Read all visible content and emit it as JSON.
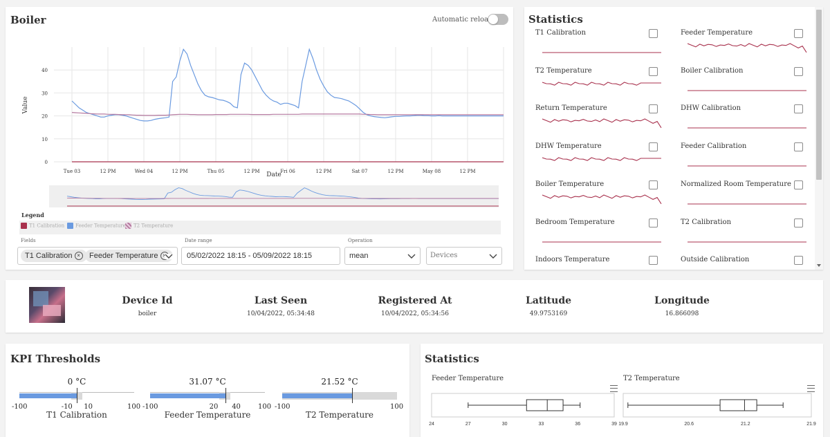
{
  "boiler_card": {
    "title": "Boiler",
    "auto_reload_label": "Automatic reload:",
    "auto_reload_on": false,
    "legend_title": "Legend",
    "fields_label": "Fields",
    "date_range_label": "Date range",
    "operation_label": "Operation",
    "selected_fields": [
      "T1 Calibration",
      "Feeder Temperature"
    ],
    "date_range_value": "05/02/2022 18:15 - 05/09/2022 18:15",
    "operation_value": "mean",
    "devices_placeholder": "Devices"
  },
  "chart_data": {
    "type": "line",
    "ylabel": "Value",
    "xlabel": "Date",
    "ylim": [
      0,
      50
    ],
    "yticks": [
      0,
      10,
      20,
      30,
      40
    ],
    "xticks": [
      "Tue 03",
      "12 PM",
      "Wed 04",
      "12 PM",
      "Thu 05",
      "12 PM",
      "Fri 06",
      "12 PM",
      "Sat 07",
      "12 PM",
      "May 08",
      "12 PM"
    ],
    "x": [
      0,
      0.05,
      0.1,
      0.15,
      0.2,
      0.25,
      0.3,
      0.35,
      0.4,
      0.45,
      0.5,
      0.55,
      0.6,
      0.65,
      0.7,
      0.75,
      0.8,
      0.85,
      0.9,
      0.95,
      1.0,
      1.05,
      1.1,
      1.15,
      1.2,
      1.25,
      1.3,
      1.35,
      1.4,
      1.45,
      1.5,
      1.55,
      1.6,
      1.65,
      1.7,
      1.75,
      1.8,
      1.85,
      1.9,
      1.95,
      2.0,
      2.05,
      2.1,
      2.15,
      2.2,
      2.25,
      2.3,
      2.35,
      2.4,
      2.45,
      2.5,
      2.55,
      2.6,
      2.65,
      2.7,
      2.75,
      2.8,
      2.85,
      2.9,
      2.95,
      3.0,
      3.05,
      3.1,
      3.15,
      3.2,
      3.25,
      3.3,
      3.35,
      3.4,
      3.45,
      3.5,
      3.55,
      3.6,
      3.65,
      3.7,
      3.75,
      3.8,
      3.85,
      3.9,
      3.95,
      4.0,
      4.05,
      4.1,
      4.15,
      4.2,
      4.25,
      4.3,
      4.35,
      4.4,
      4.45,
      4.5,
      4.55,
      4.6,
      4.65,
      4.7,
      4.75,
      4.8,
      4.85,
      4.9,
      4.95,
      5.0,
      5.05,
      5.1,
      5.15,
      5.2,
      5.25,
      5.3,
      5.35,
      5.4,
      5.45,
      5.5,
      5.55,
      5.6,
      5.65,
      5.7,
      5.75,
      5.8,
      5.85,
      5.9,
      5.95,
      6.0
    ],
    "xdomain": [
      -0.25,
      6.0
    ],
    "series": [
      {
        "name": "T1 Calibration",
        "color": "#a8304c",
        "values": [
          0,
          0,
          0,
          0,
          0,
          0,
          0,
          0,
          0,
          0,
          0,
          0,
          0,
          0,
          0,
          0,
          0,
          0,
          0,
          0,
          0,
          0,
          0,
          0,
          0,
          0,
          0,
          0,
          0,
          0,
          0,
          0,
          0,
          0,
          0,
          0,
          0,
          0,
          0,
          0,
          0,
          0,
          0,
          0,
          0,
          0,
          0,
          0,
          0,
          0,
          0,
          0,
          0,
          0,
          0,
          0,
          0,
          0,
          0,
          0,
          0,
          0,
          0,
          0,
          0,
          0,
          0,
          0,
          0,
          0,
          0,
          0,
          0,
          0,
          0,
          0,
          0,
          0,
          0,
          0,
          0,
          0,
          0,
          0,
          0,
          0,
          0,
          0,
          0,
          0,
          0,
          0,
          0,
          0,
          0,
          0,
          0,
          0,
          0,
          0,
          0,
          0,
          0,
          0,
          0,
          0,
          0,
          0,
          0,
          0,
          0,
          0,
          0,
          0,
          0,
          0,
          0,
          0,
          0,
          0,
          0
        ]
      },
      {
        "name": "Feeder Temperature",
        "color": "#6a9ae0",
        "values": [
          26.5,
          25,
          23.5,
          22.5,
          21.5,
          21,
          20.5,
          20,
          19.5,
          19.5,
          20,
          20.3,
          20.5,
          20.5,
          20.3,
          20,
          19.5,
          19,
          18.5,
          18,
          17.8,
          17.8,
          18,
          18.5,
          18.8,
          19,
          19.2,
          19.5,
          35,
          37,
          44,
          49,
          47,
          42,
          38,
          34,
          31,
          29,
          28.3,
          28,
          27.5,
          27,
          26.8,
          26.3,
          25.5,
          24,
          23.5,
          38,
          43,
          42,
          40,
          37,
          34,
          31,
          29,
          27.5,
          26.5,
          26,
          25,
          25.5,
          25.5,
          25,
          24.5,
          23.5,
          35,
          42,
          49,
          45,
          40,
          36,
          33,
          30.5,
          29,
          28,
          27.8,
          27.5,
          27,
          26.5,
          25.5,
          24.5,
          23,
          21.5,
          20.5,
          20,
          19.7,
          19.5,
          19.3,
          19.2,
          19.4,
          19.6,
          19.8,
          19.8,
          19.9,
          20.0,
          20.0,
          20.1,
          20.2,
          20.2,
          20.1,
          20.1,
          20.0,
          20.0,
          20.1,
          20.0,
          20.0,
          20.0,
          20.0,
          20.0,
          20.0,
          20.0,
          20.0,
          20.0,
          20.0,
          20.0,
          20.0,
          20.0,
          20.0,
          20.0,
          20.0,
          20.0,
          20.0
        ]
      },
      {
        "name": "T2 Temperature",
        "color": "#b57aa0",
        "values": [
          21.5,
          21.4,
          21.3,
          21.2,
          21.1,
          21,
          20.9,
          20.8,
          20.8,
          20.8,
          20.7,
          20.7,
          20.7,
          20.6,
          20.5,
          20.5,
          20.5,
          20.4,
          20.3,
          20.3,
          20.2,
          20.2,
          20.2,
          20.2,
          20.3,
          20.3,
          20.3,
          20.4,
          20.5,
          20.6,
          20.7,
          20.7,
          20.7,
          20.6,
          20.6,
          20.5,
          20.5,
          20.5,
          20.5,
          20.5,
          20.6,
          20.6,
          20.6,
          20.6,
          20.7,
          20.7,
          20.7,
          20.7,
          20.7,
          20.7,
          20.6,
          20.6,
          20.6,
          20.6,
          20.6,
          20.6,
          20.7,
          20.7,
          20.7,
          20.7,
          20.7,
          20.7,
          20.7,
          20.7,
          20.8,
          20.8,
          20.8,
          20.8,
          20.8,
          20.8,
          20.8,
          20.8,
          20.8,
          20.8,
          20.8,
          20.8,
          20.8,
          20.8,
          20.8,
          20.8,
          20.8,
          20.7,
          20.7,
          20.6,
          20.6,
          20.5,
          20.5,
          20.5,
          20.5,
          20.5,
          20.5,
          20.5,
          20.5,
          20.5,
          20.5,
          20.5,
          20.5,
          20.5,
          20.5,
          20.5,
          20.5,
          20.5,
          20.5,
          20.5,
          20.5,
          20.5,
          20.5,
          20.5,
          20.5,
          20.5,
          20.5,
          20.5,
          20.5,
          20.5,
          20.5,
          20.5,
          20.5,
          20.5,
          20.5,
          20.5,
          20.5
        ]
      }
    ]
  },
  "statistics_panel": {
    "title": "Statistics",
    "items": [
      {
        "label": "T1 Calibration",
        "shape": "flat"
      },
      {
        "label": "Feeder Temperature",
        "shape": "noisy-drop"
      },
      {
        "label": "T2 Temperature",
        "shape": "noisy-dip"
      },
      {
        "label": "Boiler Calibration",
        "shape": "flat"
      },
      {
        "label": "Return Temperature",
        "shape": "noisy-drop"
      },
      {
        "label": "DHW Calibration",
        "shape": "flat"
      },
      {
        "label": "DHW Temperature",
        "shape": "noisy-dip"
      },
      {
        "label": "Feeder Calibration",
        "shape": "flat"
      },
      {
        "label": "Boiler Temperature",
        "shape": "noisy-drop"
      },
      {
        "label": "Normalized Room Temperature",
        "shape": "flat"
      },
      {
        "label": "Bedroom Temperature",
        "shape": "flat"
      },
      {
        "label": "T2 Calibration",
        "shape": "flat"
      },
      {
        "label": "Indoors Temperature",
        "shape": "none"
      },
      {
        "label": "Outside Calibration",
        "shape": "none"
      }
    ],
    "spark_color": "#a8304c"
  },
  "device": {
    "columns": [
      {
        "heading": "Device Id",
        "value": "boiler"
      },
      {
        "heading": "Last Seen",
        "value": "10/04/2022, 05:34:48"
      },
      {
        "heading": "Registered At",
        "value": "10/04/2022, 05:34:56"
      },
      {
        "heading": "Latitude",
        "value": "49.9753169"
      },
      {
        "heading": "Longitude",
        "value": "16.866098"
      }
    ]
  },
  "kpi": {
    "title": "KPI Thresholds",
    "gauges": [
      {
        "name": "T1 Calibration",
        "value_label": "0 °C",
        "min": -100,
        "max": 100,
        "low": -10,
        "high": 10,
        "value": 0,
        "min_label": "-100",
        "max_label": "100",
        "low_label": "-10",
        "high_label": "10"
      },
      {
        "name": "Feeder Temperature",
        "value_label": "31.07 °C",
        "min": -100,
        "max": 100,
        "low": 20,
        "high": 40,
        "value": 31.07,
        "min_label": "-100",
        "max_label": "100",
        "low_label": "20",
        "high_label": "40"
      },
      {
        "name": "T2 Temperature",
        "value_label": "21.52 °C",
        "min": -100,
        "max": 100,
        "low": null,
        "high": null,
        "value": 21.52,
        "min_label": "-100",
        "max_label": "100",
        "low_label": "",
        "high_label": ""
      }
    ]
  },
  "box_stats": {
    "title": "Statistics",
    "plots": [
      {
        "name": "Feeder Temperature",
        "ticks": [
          "24",
          "27",
          "30",
          "33",
          "36",
          "39"
        ],
        "range": [
          24,
          39
        ],
        "whisker_low": 27,
        "q1": 31.8,
        "median": 33.5,
        "q3": 34.8,
        "whisker_high": 36.2
      },
      {
        "name": "T2 Temperature",
        "ticks": [
          "19.9",
          "20.6",
          "21.2",
          "21.9"
        ],
        "range": [
          19.9,
          21.9
        ],
        "whisker_low": 19.95,
        "q1": 20.93,
        "median": 21.19,
        "q3": 21.32,
        "whisker_high": 21.6
      }
    ]
  }
}
